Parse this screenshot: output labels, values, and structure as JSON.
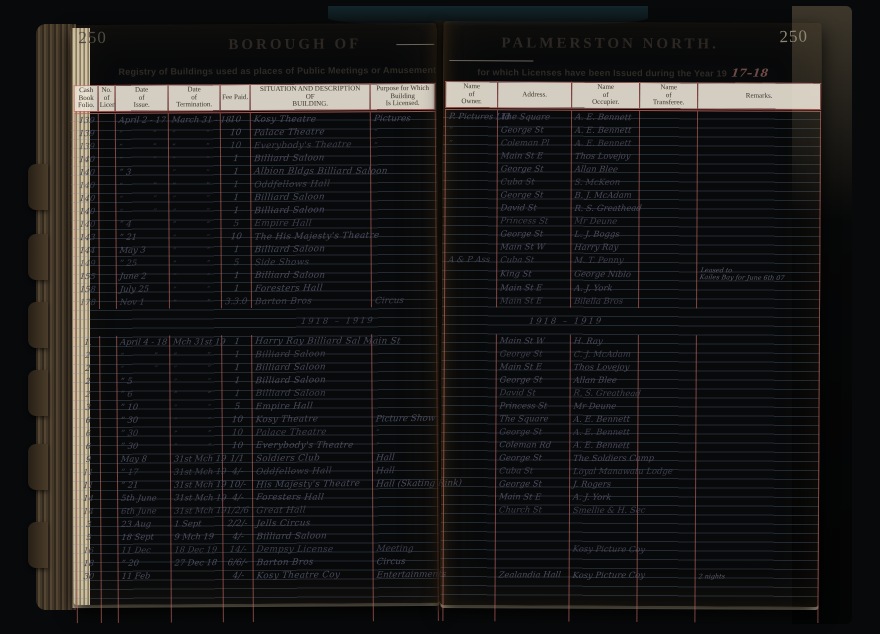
{
  "page": {
    "left_number": "250",
    "right_number": "250"
  },
  "header": {
    "title_left": "BOROUGH  OF",
    "title_right": "PALMERSTON  NORTH.",
    "subtitle_left": "Registry of Buildings used as places of Public Meetings or Amusement",
    "subtitle_right": "for which Licenses have been Issued during the Year 19",
    "year_handwritten": "17–18"
  },
  "colors": {
    "paper": "#e8e1d1",
    "column_rule_red": "#c1665f",
    "ink": "#4a4b5e"
  },
  "table": {
    "left_columns": [
      "Cash\nBook\nFolio.",
      "No.\nof\nLicense.",
      "Date\nof\nIssue.",
      "Date\nof\nTermination.",
      "Fee Paid.",
      "SITUATION AND DESCRIPTION\nOF\nBUILDING.",
      "Purpose for Which\nBuilding\nIs Licensed."
    ],
    "right_columns": [
      "Name\nof\nOwner.",
      "Address.",
      "Name\nof\nOccupier.",
      "Name\nof\nTransferee.",
      "Remarks."
    ],
    "cell_names": [
      "cash-book-folio",
      "license-number",
      "date-of-issue",
      "date-of-termination",
      "fee-paid",
      "building-description",
      "purpose-licensed",
      "owner-name",
      "address",
      "occupier-name",
      "transferee-name",
      "remarks"
    ],
    "sections": [
      {
        "heading_left": "",
        "heading_right": "",
        "rows": [
          [
            "139",
            "",
            "April 2 - 17",
            "March 31 - 18",
            "10",
            "Kosy Theatre",
            "Pictures",
            "P. Pictures Ltd",
            "The Square",
            "A. E. Bennett",
            "",
            ""
          ],
          [
            "139",
            "",
            "” ”",
            "” ”",
            "10",
            "Palace Theatre",
            "”",
            "”",
            "George St",
            "A. E. Bennett",
            "",
            ""
          ],
          [
            "139",
            "",
            "” ”",
            "” ”",
            "10",
            "Everybody's Theatre",
            "”",
            "”",
            "Coleman Pl",
            "A. E. Bennett",
            "",
            ""
          ],
          [
            "140",
            "",
            "” ”",
            "” ”",
            "1",
            "Billiard Saloon",
            "",
            "",
            "Main St E",
            "Thos Lovejoy",
            "",
            ""
          ],
          [
            "140",
            "",
            "”  3",
            "” ”",
            "1",
            "Albion Bldgs Billiard Saloon",
            "",
            "",
            "George St",
            "Allan Blee",
            "",
            ""
          ],
          [
            "140",
            "",
            "” ”",
            "” ”",
            "1",
            "Oddfellows Hall",
            "",
            "",
            "Cuba St",
            "S. McKeon",
            "",
            ""
          ],
          [
            "140",
            "",
            "” ”",
            "” ”",
            "1",
            "Billiard Saloon",
            "",
            "",
            "George St",
            "B. J. McAdam",
            "",
            ""
          ],
          [
            "140",
            "",
            "” ”",
            "” ”",
            "1",
            "Billiard Saloon",
            "",
            "",
            "David St",
            "R. S. Greathead",
            "",
            ""
          ],
          [
            "140",
            "",
            "”  4",
            "” ”",
            "5",
            "Empire Hall",
            "",
            "",
            "Princess St",
            "Mr Deune",
            "",
            ""
          ],
          [
            "143",
            "",
            "”  21",
            "” ”",
            "10",
            "The His Majesty's Theatre",
            "",
            "",
            "George St",
            "L. J. Boggs",
            "",
            ""
          ],
          [
            "144",
            "",
            "May 3",
            "” ”",
            "1",
            "Billiard Saloon",
            "",
            "",
            "Main St W",
            "Harry Ray",
            "",
            ""
          ],
          [
            "149",
            "",
            "”  25",
            "” ”",
            "5",
            "Side Shows",
            "",
            "A & P Ass",
            "Cuba St",
            "M. T. Penny",
            "",
            ""
          ],
          [
            "155",
            "",
            "June 2",
            "” ”",
            "1",
            "Billiard Saloon",
            "",
            "",
            "King St",
            "George Niblo",
            "",
            "Leased to\nKailes Bay for June 6th 07"
          ],
          [
            "158",
            "",
            "July 25",
            "” ”",
            "1",
            "Foresters Hall",
            "",
            "",
            "Main St E",
            "A. J. York",
            "",
            ""
          ],
          [
            "178",
            "",
            "Nov 1",
            "” ”",
            "3.3.0",
            "Barton Bros",
            "Circus",
            "",
            "Main St E",
            "Bilella Bros",
            "",
            ""
          ]
        ]
      },
      {
        "heading_left": "1918 – 1919",
        "heading_right": "1918 – 1919",
        "rows": [
          [
            "1.",
            "",
            "April 4 - 18",
            "Mch 31st 19",
            "1",
            "Harry Ray Billiard Sal Main St",
            "",
            "",
            "Main St W",
            "H. Ray",
            "",
            ""
          ],
          [
            "2",
            "",
            "” ”",
            "” ”",
            "1",
            "Billiard Saloon",
            "",
            "",
            "George St",
            "C. J. McAdam",
            "",
            ""
          ],
          [
            "2",
            "",
            "” ”",
            "” ”",
            "1",
            "Billiard Saloon",
            "",
            "",
            "Main St E",
            "Thos Lovejoy",
            "",
            ""
          ],
          [
            "2",
            "",
            "”  5",
            "” ”",
            "1",
            "Billiard Saloon",
            "",
            "",
            "George St",
            "Allan Blee",
            "",
            ""
          ],
          [
            "2",
            "",
            "”  6",
            "” ”",
            "1",
            "Billiard Saloon",
            "",
            "",
            "David St",
            "R. S. Greathead",
            "",
            ""
          ],
          [
            "3",
            "",
            "”  10",
            "” ”",
            "5",
            "Empire Hall",
            "",
            "",
            "Princess St",
            "Mr Deune",
            "",
            ""
          ],
          [
            "6",
            "",
            "”  30",
            "” ”",
            "10",
            "Kosy Theatre",
            "Picture Show",
            "",
            "The Square",
            "A. E. Bennett",
            "",
            ""
          ],
          [
            "6",
            "",
            "”  30",
            "” ”",
            "10",
            "Palace Theatre",
            "”",
            "",
            "George St",
            "A. E. Bennett",
            "",
            ""
          ],
          [
            "6",
            "",
            "”  30",
            "” ”",
            "10",
            "Everybody's Theatre",
            "”",
            "",
            "Coleman Rd",
            "A. E. Bennett",
            "",
            ""
          ],
          [
            "9",
            "",
            "May 8",
            "31st Mch 19",
            "1/1",
            "Soldiers Club",
            "Hall",
            "",
            "George St",
            "The Soldiers Camp",
            "",
            ""
          ],
          [
            "11",
            "",
            "”  17",
            "31st Mch 19",
            "4/-",
            "Oddfellows Hall",
            "Hall",
            "",
            "Cuba St",
            "Loyal Manawatu Lodge",
            "",
            ""
          ],
          [
            "11",
            "",
            "”  21",
            "31st Mch 19",
            "10/-",
            "His Majesty's Theatre",
            "Hall (Skating Rink)",
            "",
            "George St",
            "J. Rogers",
            "",
            ""
          ],
          [
            "14",
            "",
            "5th June",
            "31st Mch 19",
            "4/-",
            "Foresters Hall",
            "",
            "",
            "Main St E",
            "A. J. York",
            "",
            ""
          ],
          [
            "14",
            "",
            "6th June",
            "31st Mch 19",
            "1/2/6",
            "Great Hall",
            "",
            "",
            "Church St",
            "Smellie & H. Sec",
            "",
            ""
          ],
          [
            "3",
            "",
            "23 Aug",
            "1 Sept",
            "2/2/-",
            "Jells Circus",
            "",
            "",
            "",
            "",
            "",
            ""
          ],
          [
            "5",
            "",
            "18 Sept",
            "9 Mch 19",
            "4/-",
            "Billiard Saloon",
            "",
            "",
            "",
            "",
            "",
            ""
          ],
          [
            "16",
            "",
            "11 Dec",
            "18 Dec 19",
            "14/-",
            "Dempsy License",
            "Meeting",
            "",
            "",
            "Kosy Picture Coy",
            "",
            ""
          ],
          [
            "18",
            "",
            "”  20",
            "27 Dec 18",
            "6/6/-",
            "Barton Bros",
            "Circus",
            "",
            "",
            "",
            "",
            ""
          ],
          [
            "30",
            "",
            "11 Feb",
            "",
            "4/-",
            "Kosy Theatre Coy",
            "Entertainments",
            "",
            "Zealandia Hall",
            "Kosy Picture Coy",
            "",
            "2 nights"
          ]
        ]
      }
    ]
  }
}
